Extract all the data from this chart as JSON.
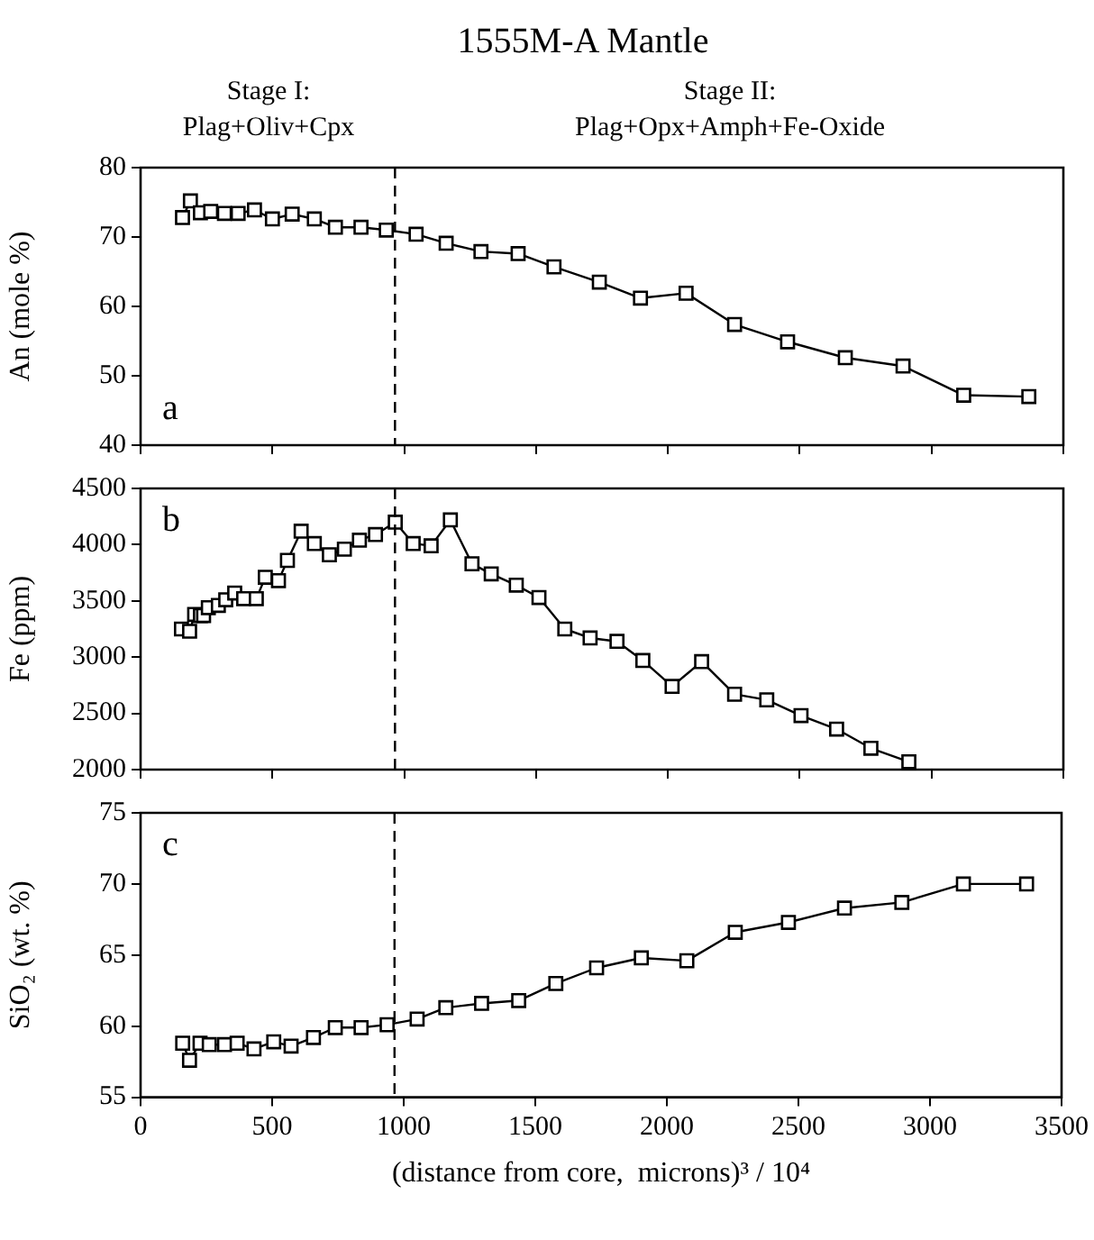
{
  "chart_data": [
    {
      "type": "line",
      "title": "1555M-A Mantle",
      "ylabel": "An (mole %)",
      "annotations": [
        "Stage I:\nPlag+Oliv+Cpx",
        "Stage II:\nPlag+Opx+Amph+Fe-Oxide",
        "a"
      ],
      "x": [
        159,
        189,
        227,
        266,
        318,
        370,
        432,
        500,
        575,
        659,
        739,
        836,
        932,
        1045,
        1159,
        1291,
        1432,
        1568,
        1740,
        1896,
        2069,
        2253,
        2454,
        2673,
        2892,
        3122,
        3369
      ],
      "series": [
        {
          "color": "#000000",
          "values": [
            72.8,
            75.2,
            73.5,
            73.7,
            73.4,
            73.4,
            73.9,
            72.6,
            73.3,
            72.6,
            71.4,
            71.4,
            71.0,
            70.4,
            69.1,
            67.9,
            67.6,
            65.7,
            63.5,
            61.2,
            61.9,
            57.4,
            54.9,
            52.6,
            51.4,
            47.2,
            47.0
          ]
        }
      ],
      "xlim": [
        0,
        3500
      ],
      "xticks": [
        0,
        500,
        1000,
        1500,
        2000,
        2500,
        3000,
        3500
      ],
      "ylim": [
        40,
        80
      ],
      "yticks": [
        40,
        50,
        60,
        70,
        80
      ],
      "tick_labels": "y",
      "marker": "square",
      "line_style": "solid",
      "grid": false,
      "legend": false,
      "ref_lines": [
        {
          "axis": "x",
          "value": 965,
          "line_style": "dashed",
          "color": "#000000"
        }
      ]
    },
    {
      "type": "line",
      "ylabel": "Fe (ppm)",
      "annotations": [
        "b"
      ],
      "x": [
        155,
        186,
        205,
        227,
        239,
        257,
        295,
        323,
        357,
        391,
        439,
        473,
        523,
        557,
        609,
        659,
        716,
        773,
        830,
        891,
        966,
        1034,
        1102,
        1175,
        1257,
        1330,
        1425,
        1511,
        1609,
        1705,
        1807,
        1905,
        2016,
        2128,
        2253,
        2375,
        2505,
        2640,
        2770,
        2914
      ],
      "series": [
        {
          "color": "#000000",
          "values": [
            3250,
            3230,
            3380,
            3370,
            3370,
            3440,
            3460,
            3510,
            3570,
            3520,
            3520,
            3710,
            3680,
            3860,
            4120,
            4010,
            3910,
            3960,
            4040,
            4090,
            4200,
            4010,
            3990,
            4220,
            3830,
            3740,
            3640,
            3530,
            3250,
            3170,
            3140,
            2970,
            2740,
            2960,
            2670,
            2620,
            2480,
            2360,
            2190,
            2070
          ]
        }
      ],
      "xlim": [
        0,
        3500
      ],
      "xticks": [
        0,
        500,
        1000,
        1500,
        2000,
        2500,
        3000,
        3500
      ],
      "ylim": [
        2000,
        4500
      ],
      "yticks": [
        2000,
        2500,
        3000,
        3500,
        4000,
        4500
      ],
      "tick_labels": "y",
      "marker": "square",
      "line_style": "solid",
      "grid": false,
      "legend": false,
      "ref_lines": [
        {
          "axis": "x",
          "value": 965,
          "line_style": "dashed",
          "color": "#000000"
        }
      ]
    },
    {
      "type": "line",
      "ylabel": "SiO₂ (wt. %)",
      "xlabel": "(distance from core,  microns)³ / 10⁴",
      "annotations": [
        "c"
      ],
      "x": [
        160,
        186,
        226,
        261,
        319,
        367,
        431,
        506,
        572,
        657,
        740,
        838,
        937,
        1051,
        1160,
        1296,
        1437,
        1578,
        1733,
        1903,
        2076,
        2260,
        2462,
        2675,
        2893,
        3127,
        3367
      ],
      "series": [
        {
          "color": "#000000",
          "values": [
            58.8,
            57.6,
            58.8,
            58.7,
            58.7,
            58.8,
            58.4,
            58.9,
            58.6,
            59.2,
            59.9,
            59.9,
            60.1,
            60.5,
            61.3,
            61.6,
            61.8,
            63.0,
            64.1,
            64.8,
            64.6,
            66.6,
            67.3,
            68.3,
            68.7,
            70.0,
            70.0
          ]
        }
      ],
      "xlim": [
        0,
        3500
      ],
      "xticks": [
        0,
        500,
        1000,
        1500,
        2000,
        2500,
        3000,
        3500
      ],
      "ylim": [
        55,
        75
      ],
      "yticks": [
        55,
        60,
        65,
        70,
        75
      ],
      "marker": "square",
      "line_style": "solid",
      "grid": false,
      "legend": false,
      "ref_lines": [
        {
          "axis": "x",
          "value": 965,
          "line_style": "dashed",
          "color": "#000000"
        }
      ]
    }
  ]
}
